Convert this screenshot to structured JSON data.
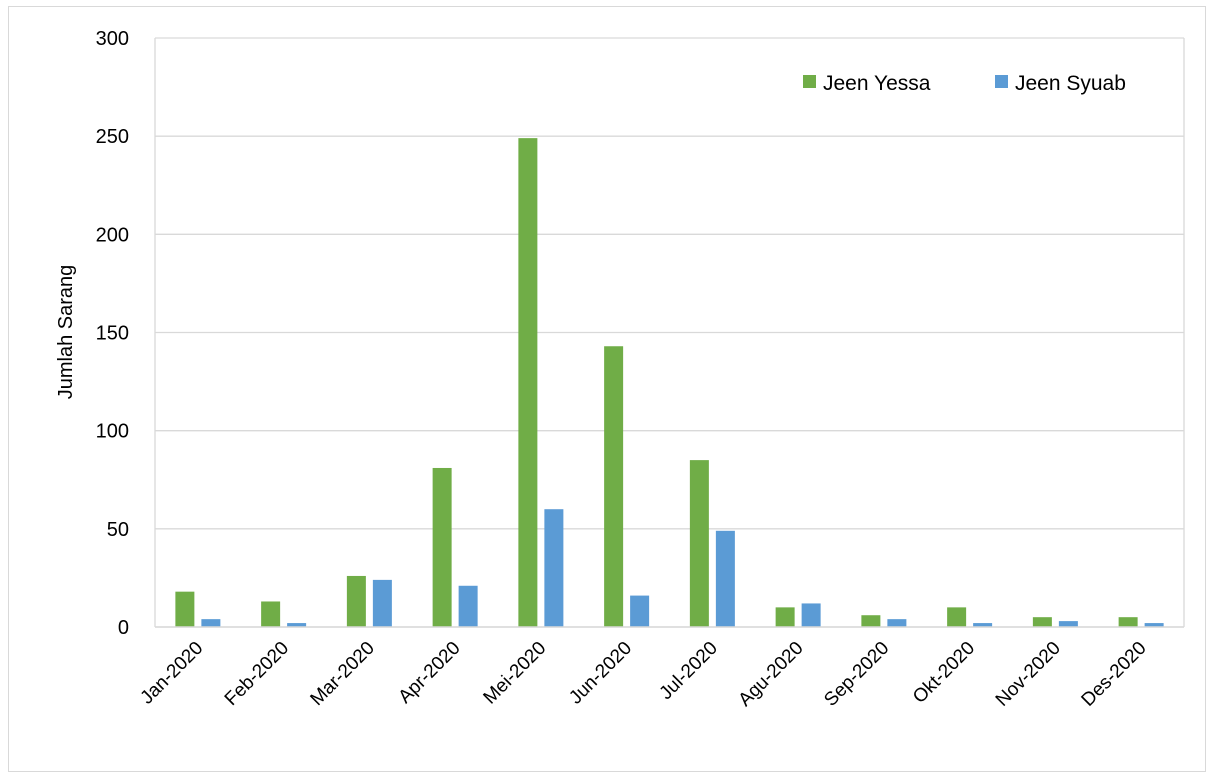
{
  "chart_data": {
    "type": "bar",
    "title": "",
    "xlabel": "",
    "ylabel": "Jumlah Sarang",
    "ylim": [
      0,
      300
    ],
    "yticks": [
      0,
      50,
      100,
      150,
      200,
      250,
      300
    ],
    "grid": true,
    "legend_position": "top-right",
    "categories": [
      "Jan-2020",
      "Feb-2020",
      "Mar-2020",
      "Apr-2020",
      "Mei-2020",
      "Jun-2020",
      "Jul-2020",
      "Agu-2020",
      "Sep-2020",
      "Okt-2020",
      "Nov-2020",
      "Des-2020"
    ],
    "series": [
      {
        "name": "Jeen Yessa",
        "color": "#70ad47",
        "values": [
          18,
          13,
          26,
          81,
          249,
          143,
          85,
          10,
          6,
          10,
          5,
          5
        ]
      },
      {
        "name": "Jeen Syuab",
        "color": "#5b9bd5",
        "values": [
          4,
          2,
          24,
          21,
          60,
          16,
          49,
          12,
          4,
          2,
          3,
          2
        ]
      }
    ]
  }
}
